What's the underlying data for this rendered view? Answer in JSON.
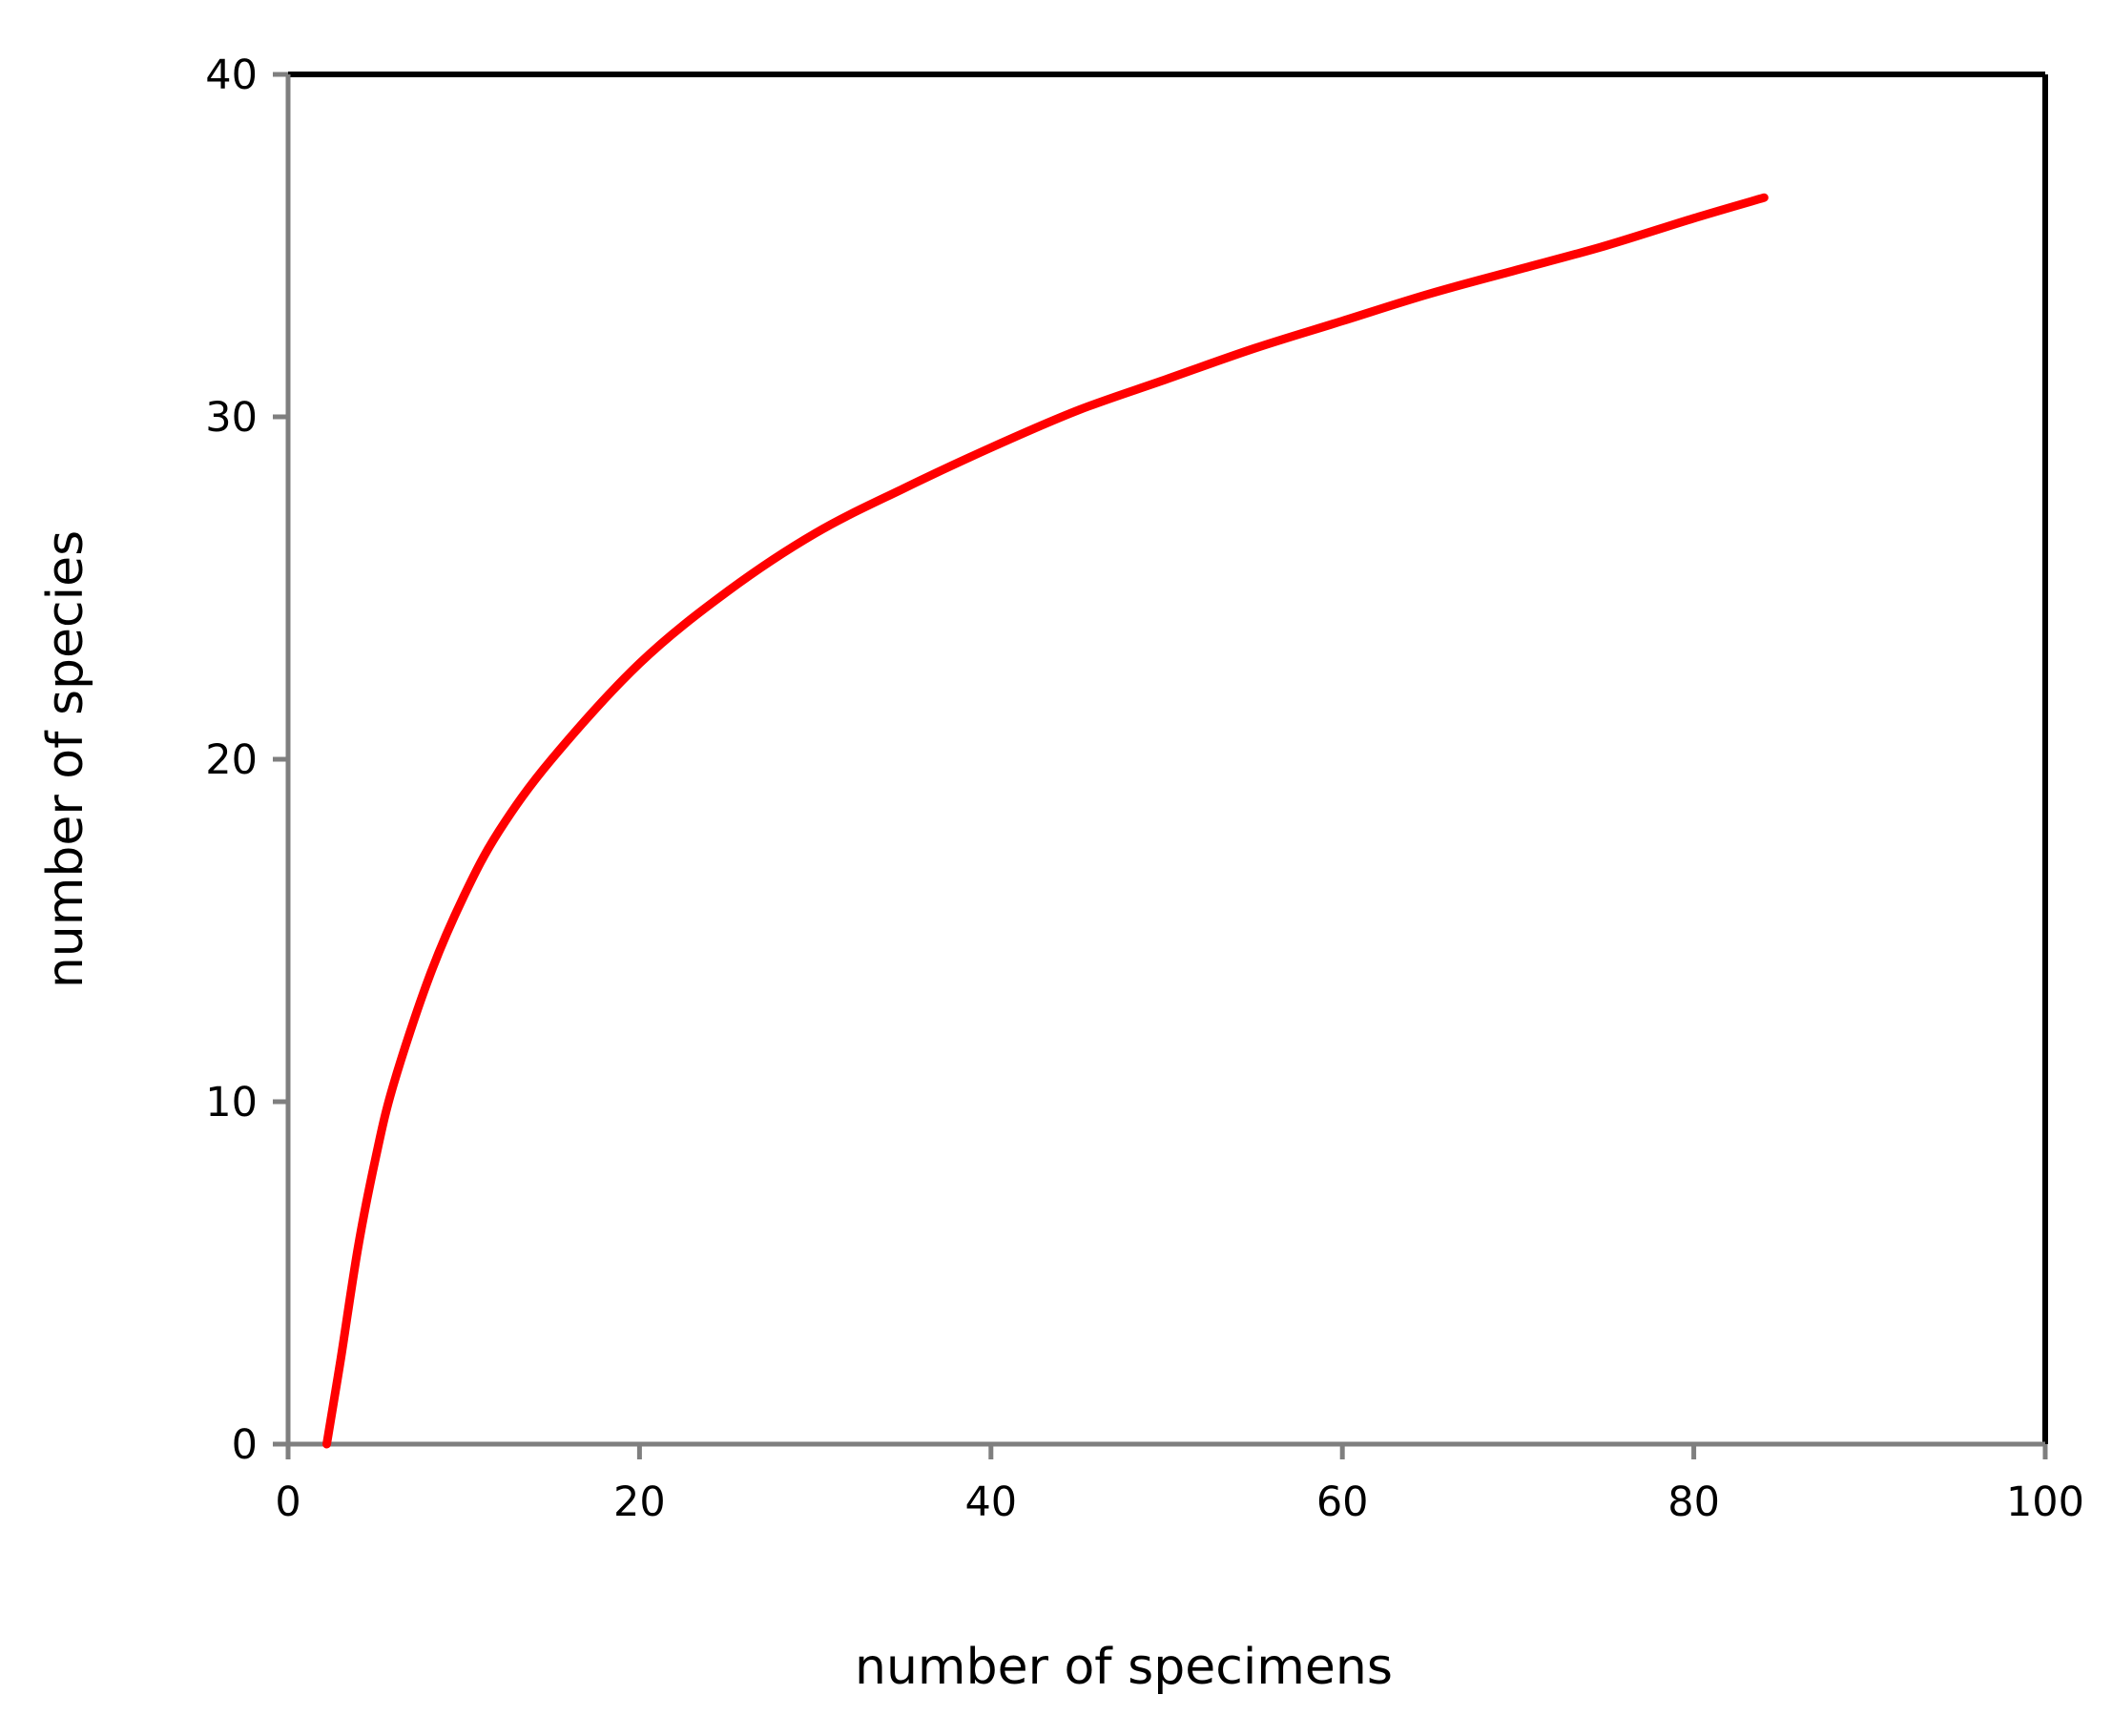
{
  "chart_data": {
    "type": "line",
    "title": "",
    "xlabel": "number of specimens",
    "ylabel": "number of species",
    "xlim": [
      0,
      100
    ],
    "ylim": [
      0,
      40
    ],
    "xticks": [
      0,
      20,
      40,
      60,
      80,
      100
    ],
    "yticks": [
      0,
      10,
      20,
      30,
      40
    ],
    "xtick_labels": [
      "0",
      "20",
      "40",
      "60",
      "80",
      "100"
    ],
    "ytick_labels": [
      "0",
      "10",
      "20",
      "30",
      "40"
    ],
    "grid": false,
    "legend": "none",
    "series": [
      {
        "color": "#ff0000",
        "x": [
          2.2,
          3,
          4,
          5,
          6,
          8,
          10,
          12,
          15,
          20,
          25,
          30,
          35,
          40,
          45,
          50,
          55,
          60,
          65,
          70,
          75,
          80,
          84
        ],
        "y": [
          0,
          2.5,
          5.8,
          8.4,
          10.5,
          13.6,
          16.0,
          17.9,
          20.0,
          22.8,
          24.9,
          26.6,
          27.9,
          29.1,
          30.2,
          31.1,
          32.0,
          32.8,
          33.6,
          34.3,
          35.0,
          35.8,
          36.4
        ]
      }
    ]
  },
  "colors": {
    "axis_gray": "#7f7f7f",
    "frame": "#000000",
    "series": "#ff0000"
  }
}
